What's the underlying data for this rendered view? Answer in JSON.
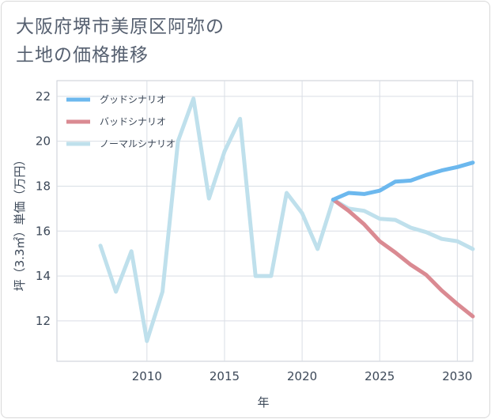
{
  "title_lines": [
    "大阪府堺市美原区阿弥の",
    "土地の価格推移"
  ],
  "chart_data": {
    "type": "line",
    "title": "大阪府堺市美原区阿弥の土地の価格推移",
    "xlabel": "年",
    "ylabel": "坪（3.3㎡）単価（万円）",
    "xlim": [
      2004.2,
      2031.0
    ],
    "ylim": [
      10.2,
      22.7
    ],
    "x_ticks": [
      2010,
      2015,
      2020,
      2025,
      2030
    ],
    "y_ticks": [
      12,
      14,
      16,
      18,
      20,
      22
    ],
    "grid": true,
    "legend_position": "top-left",
    "series": [
      {
        "name": "グッドシナリオ",
        "color": "#6cb8ee",
        "x": [
          2022,
          2023,
          2024,
          2025,
          2026,
          2027,
          2028,
          2029,
          2030,
          2031
        ],
        "values": [
          17.4,
          17.7,
          17.65,
          17.8,
          18.2,
          18.25,
          18.5,
          18.7,
          18.85,
          19.05
        ]
      },
      {
        "name": "バッドシナリオ",
        "color": "#da8a92",
        "x": [
          2022,
          2023,
          2024,
          2025,
          2026,
          2027,
          2028,
          2029,
          2030,
          2031
        ],
        "values": [
          17.4,
          16.9,
          16.3,
          15.55,
          15.05,
          14.5,
          14.05,
          13.35,
          12.75,
          12.2
        ]
      },
      {
        "name": "ノーマルシナリオ",
        "color": "#bfe0ec",
        "x": [
          2007,
          2008,
          2009,
          2010,
          2011,
          2012,
          2013,
          2014,
          2015,
          2016,
          2017,
          2018,
          2019,
          2020,
          2021,
          2022,
          2023,
          2024,
          2025,
          2026,
          2027,
          2028,
          2029,
          2030,
          2031
        ],
        "values": [
          15.35,
          13.3,
          15.1,
          11.1,
          13.3,
          20.0,
          21.9,
          17.45,
          19.55,
          21.0,
          14.0,
          14.0,
          17.7,
          16.8,
          15.2,
          17.4,
          17.0,
          16.9,
          16.55,
          16.5,
          16.15,
          15.95,
          15.65,
          15.55,
          15.2
        ]
      }
    ]
  }
}
